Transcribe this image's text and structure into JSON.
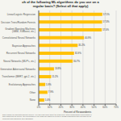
{
  "chart_data": {
    "type": "bar",
    "orientation": "horizontal",
    "title": "ch of the following ML algorithms do you use on a\nregular basis? (Select all that apply)",
    "xlabel": "Percent of Respondents",
    "categories": [
      "Linear/Logistic Regression",
      "Decision Trees/Random Forests",
      "Gradient Boosting Machines\n(GBM, XGBoost, etc.)",
      "Convolutional Neural Networks",
      "Bayesian Approaches",
      "Recurrent Neural Networks",
      "Neural Networks (MLP's, etc.)",
      "Generative Adversarial Networks",
      "Transformer (BERT, gpt-2, etc.)",
      "Evolutionary Approaches",
      "Other",
      "None"
    ],
    "values": [
      57.5,
      57.3,
      57.0,
      40.9,
      35.2,
      31.9,
      30.7,
      13.8,
      11.2,
      5.9,
      7.9,
      5.0
    ],
    "value_labels": [
      "57.5%",
      "57.3%",
      "57.0%",
      "40.9%",
      "35.2%",
      "31.9%",
      "30.7%",
      "13.8%",
      "11.2%",
      "5.9%",
      "7.9%",
      "5.0%"
    ],
    "data_labels": true,
    "color": "#FFC107",
    "xlim": [
      0,
      70
    ],
    "xticks": [
      {
        "value": 0,
        "label": "0%"
      },
      {
        "value": 10,
        "label": "10%"
      },
      {
        "value": 20,
        "label": "20%"
      },
      {
        "value": 30,
        "label": "30%"
      },
      {
        "value": 40,
        "label": "40%"
      },
      {
        "value": 50,
        "label": "50%"
      },
      {
        "value": 60,
        "label": "60%"
      },
      {
        "value": 70,
        "label": "70%"
      }
    ],
    "grid": true,
    "annotations": [
      "2019 Kaggle ML and Data Science Survey. You can learn more about the study here: https://www.kaggle.com/c/kaggle-s",
      "who completed the survey, the percentages in the graph are based on a total of 19782 respondents who provided an an",
      "Copyright 2019 Business Over Broadway"
    ]
  }
}
